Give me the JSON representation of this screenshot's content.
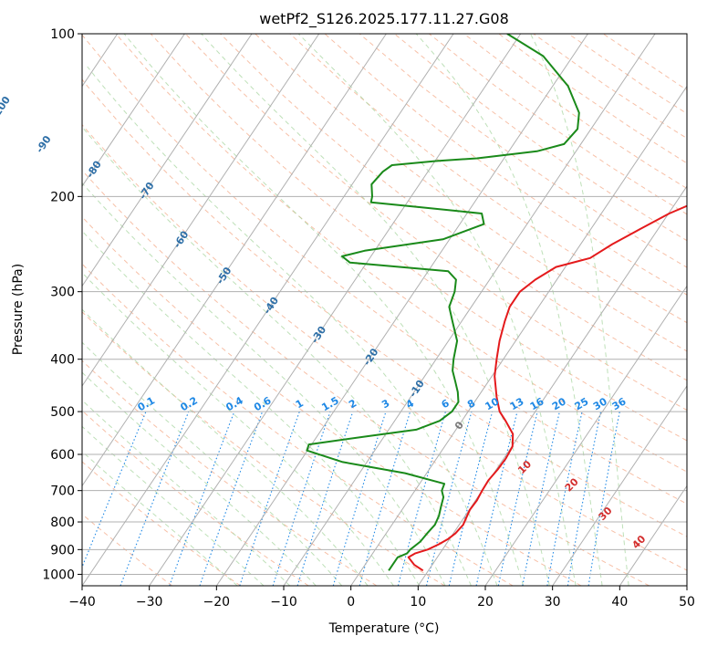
{
  "chart_data": {
    "type": "line",
    "title": "wetPf2_S126.2025.177.11.27.G08",
    "xlabel": "Temperature (°C)",
    "ylabel": "Pressure (hPa)",
    "xlim": [
      -40,
      50
    ],
    "ylim": [
      1050,
      100
    ],
    "y_scale": "log",
    "grid": true,
    "x_ticks": [
      -40,
      -30,
      -20,
      -10,
      0,
      10,
      20,
      30,
      40,
      50
    ],
    "y_ticks": [
      100,
      200,
      300,
      400,
      500,
      600,
      700,
      800,
      900,
      1000
    ],
    "colors": {
      "temperature": "#e41a1c",
      "dewpoint": "#1a8a1a",
      "isotherm_labels": "#2e6fa7",
      "mixing_ratio": "#1e88e5",
      "moist_adiabat_labels": "#d32f2f",
      "dry_adiabat": "#f4a582",
      "moist_adiabat": "#a8d5a0",
      "grid": "#b0b0b0"
    },
    "series": [
      {
        "kind": "temperature",
        "points": [
          [
            984,
            9.2
          ],
          [
            960,
            7.3
          ],
          [
            930,
            5.7
          ],
          [
            915,
            6.3
          ],
          [
            900,
            7.8
          ],
          [
            880,
            8.9
          ],
          [
            860,
            9.8
          ],
          [
            840,
            10.3
          ],
          [
            810,
            10.6
          ],
          [
            790,
            10.4
          ],
          [
            760,
            10.1
          ],
          [
            730,
            10.2
          ],
          [
            700,
            10.0
          ],
          [
            670,
            9.9
          ],
          [
            640,
            10.2
          ],
          [
            610,
            10.3
          ],
          [
            580,
            10.1
          ],
          [
            550,
            8.9
          ],
          [
            520,
            6.5
          ],
          [
            500,
            4.7
          ],
          [
            470,
            2.8
          ],
          [
            430,
            0.4
          ],
          [
            400,
            -1.0
          ],
          [
            370,
            -2.4
          ],
          [
            340,
            -3.6
          ],
          [
            320,
            -4.3
          ],
          [
            300,
            -4.3
          ],
          [
            285,
            -3.2
          ],
          [
            270,
            -1.4
          ],
          [
            260,
            2.8
          ],
          [
            245,
            4.7
          ],
          [
            230,
            7.3
          ],
          [
            215,
            10.1
          ],
          [
            200,
            14.3
          ],
          [
            185,
            16.9
          ],
          [
            170,
            17.8
          ],
          [
            150,
            19.4
          ],
          [
            130,
            22.4
          ],
          [
            115,
            24.5
          ],
          [
            105,
            25.9
          ],
          [
            100,
            26.0
          ]
        ]
      },
      {
        "kind": "dewpoint",
        "points": [
          [
            984,
            4.1
          ],
          [
            960,
            4.1
          ],
          [
            930,
            4.1
          ],
          [
            915,
            5.1
          ],
          [
            900,
            5.2
          ],
          [
            870,
            5.9
          ],
          [
            840,
            6.1
          ],
          [
            810,
            6.4
          ],
          [
            780,
            6.1
          ],
          [
            750,
            5.5
          ],
          [
            720,
            4.9
          ],
          [
            700,
            4.0
          ],
          [
            680,
            3.7
          ],
          [
            650,
            -3.2
          ],
          [
            620,
            -13.6
          ],
          [
            590,
            -20.1
          ],
          [
            575,
            -20.4
          ],
          [
            555,
            -12.4
          ],
          [
            540,
            -5.9
          ],
          [
            520,
            -3.3
          ],
          [
            500,
            -2.4
          ],
          [
            480,
            -2.4
          ],
          [
            460,
            -3.5
          ],
          [
            440,
            -4.9
          ],
          [
            420,
            -6.4
          ],
          [
            400,
            -7.4
          ],
          [
            370,
            -8.7
          ],
          [
            340,
            -11.4
          ],
          [
            320,
            -13.3
          ],
          [
            300,
            -14.0
          ],
          [
            285,
            -15.0
          ],
          [
            275,
            -17.0
          ],
          [
            265,
            -32.5
          ],
          [
            258,
            -34.3
          ],
          [
            252,
            -31.5
          ],
          [
            240,
            -21.0
          ],
          [
            225,
            -16.4
          ],
          [
            215,
            -17.8
          ],
          [
            209,
            -28.1
          ],
          [
            205,
            -35.4
          ],
          [
            200,
            -35.8
          ],
          [
            190,
            -37.1
          ],
          [
            180,
            -36.7
          ],
          [
            175,
            -36.0
          ],
          [
            172,
            -29.9
          ],
          [
            170,
            -24.0
          ],
          [
            165,
            -15.8
          ],
          [
            160,
            -12.5
          ],
          [
            150,
            -12.0
          ],
          [
            140,
            -13.4
          ],
          [
            125,
            -17.7
          ],
          [
            110,
            -24.4
          ],
          [
            100,
            -32.0
          ]
        ]
      }
    ],
    "isotherm_labels": [
      "-100",
      "-90",
      "-80",
      "-70",
      "-60",
      "-50",
      "-40",
      "-30",
      "-20",
      "-10",
      "0"
    ],
    "mixing_ratio_labels": [
      "0.1",
      "0.2",
      "0.4",
      "0.6",
      "1",
      "1.5",
      "2",
      "3",
      "4",
      "6",
      "8",
      "10",
      "13",
      "16",
      "20",
      "25",
      "30",
      "36"
    ],
    "moist_adiabat_labels": [
      "10",
      "20",
      "30",
      "40"
    ]
  }
}
